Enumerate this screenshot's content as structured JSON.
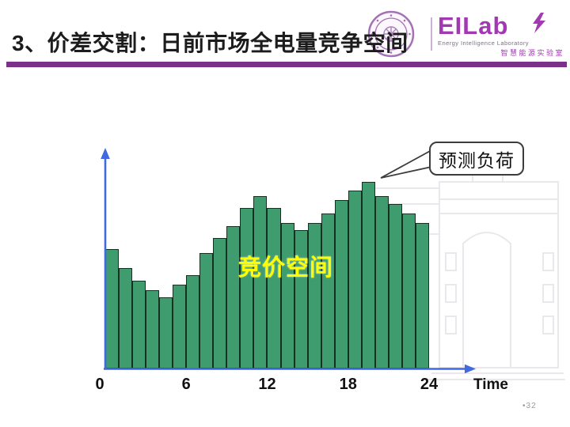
{
  "header": {
    "title": "3、价差交割：日前市场全电量竞争空间",
    "logo": {
      "wordmark": "EILab",
      "subtitle_en": "Energy Intelligence Laboratory",
      "subtitle_cn": "智慧能源实验室"
    }
  },
  "chart_data": {
    "type": "bar",
    "title": "",
    "xlabel": "Time",
    "ylabel": "",
    "x_hours": [
      1,
      2,
      3,
      4,
      5,
      6,
      7,
      8,
      9,
      10,
      11,
      12,
      13,
      14,
      15,
      16,
      17,
      18,
      19,
      20,
      21,
      22,
      23,
      24
    ],
    "values_percent_of_peak": [
      64,
      54,
      47,
      42,
      38,
      45,
      50,
      62,
      70,
      76,
      86,
      92,
      86,
      78,
      74,
      78,
      83,
      90,
      95,
      100,
      92,
      88,
      83,
      78
    ],
    "x_ticks": [
      "0",
      "6",
      "12",
      "18",
      "24"
    ],
    "x_tick_hours": [
      0,
      6,
      12,
      18,
      24
    ],
    "xlim": [
      0,
      24
    ],
    "grid": false,
    "legend": "none",
    "annotations": {
      "callout": "预测负荷",
      "callout_points_to_hour": 20,
      "area_label": "竞价空间"
    },
    "bar_color": "#3e9c6e",
    "bar_border_color": "#17301f",
    "axis_color": "#4169e0",
    "area_label_color": "#ffff00"
  },
  "footer": {
    "page_number": "•32"
  },
  "colors": {
    "divider_purple": "#7b3189",
    "logo_purple": "#a238b2",
    "seal_purple": "#a272b4"
  }
}
